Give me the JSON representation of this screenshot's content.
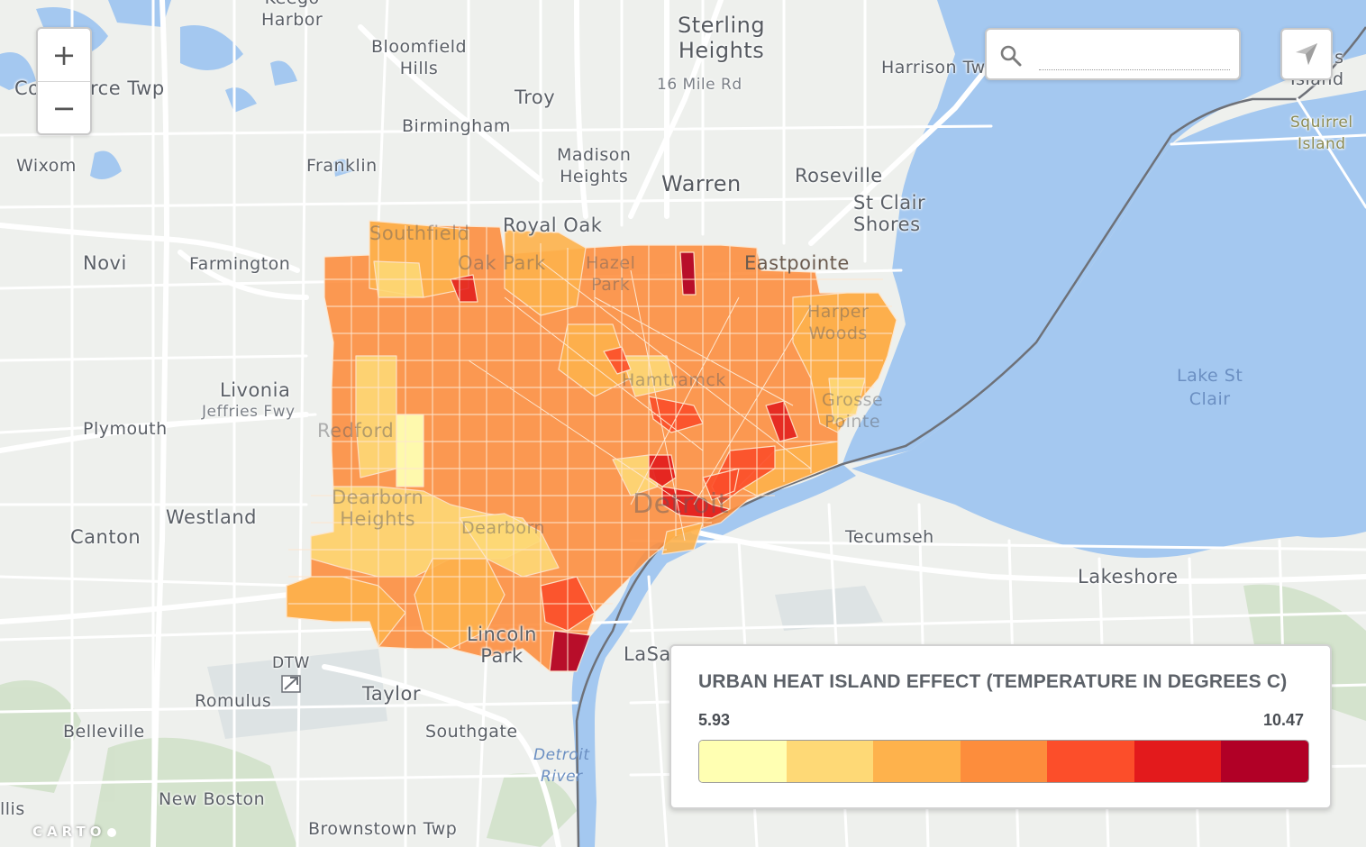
{
  "map": {
    "labels": [
      {
        "id": "keego-harbor",
        "text": "Keego\nHarbor"
      },
      {
        "id": "bloomfield-hills",
        "text": "Bloomfield\nHills"
      },
      {
        "id": "sterling-heights",
        "text": "Sterling\nHeights"
      },
      {
        "id": "harrison-twp",
        "text": "Harrison Tw"
      },
      {
        "id": "commerce-twp-a",
        "text": "Co"
      },
      {
        "id": "commerce-twp-b",
        "text": "rce Twp"
      },
      {
        "id": "troy",
        "text": "Troy"
      },
      {
        "id": "sixteen-mile-rd",
        "text": "16 Mile Rd"
      },
      {
        "id": "birmingham",
        "text": "Birmingham"
      },
      {
        "id": "madison-heights",
        "text": "Madison\nHeights"
      },
      {
        "id": "wixom",
        "text": "Wixom"
      },
      {
        "id": "franklin",
        "text": "Franklin"
      },
      {
        "id": "warren",
        "text": "Warren"
      },
      {
        "id": "roseville",
        "text": "Roseville"
      },
      {
        "id": "st-clair-shores",
        "text": "St Clair\nShores"
      },
      {
        "id": "squirrel-island",
        "text": "Squirrel\nIsland"
      },
      {
        "id": "ns-island",
        "text": "ns\nIsland"
      },
      {
        "id": "southfield",
        "text": "Southfield"
      },
      {
        "id": "royal-oak",
        "text": "Royal Oak"
      },
      {
        "id": "novi",
        "text": "Novi"
      },
      {
        "id": "farmington",
        "text": "Farmington"
      },
      {
        "id": "oak-park",
        "text": "Oak Park"
      },
      {
        "id": "hazel-park",
        "text": "Hazel\nPark"
      },
      {
        "id": "eastpointe",
        "text": "Eastpointe"
      },
      {
        "id": "harper-woods",
        "text": "Harper\nWoods"
      },
      {
        "id": "lake-st-clair",
        "text": "Lake St\nClair"
      },
      {
        "id": "livonia",
        "text": "Livonia"
      },
      {
        "id": "jeffries-fwy",
        "text": "Jeffries Fwy"
      },
      {
        "id": "hamtramck",
        "text": "Hamtramck"
      },
      {
        "id": "plymouth",
        "text": "Plymouth"
      },
      {
        "id": "redford",
        "text": "Redford"
      },
      {
        "id": "grosse-pointe",
        "text": "Grosse\nPointe"
      },
      {
        "id": "dearborn-heights",
        "text": "Dearborn\nHeights"
      },
      {
        "id": "westland",
        "text": "Westland"
      },
      {
        "id": "detroit",
        "text": "Detroit"
      },
      {
        "id": "canton",
        "text": "Canton"
      },
      {
        "id": "dearborn",
        "text": "Dearborn"
      },
      {
        "id": "tecumseh",
        "text": "Tecumseh"
      },
      {
        "id": "lakeshore",
        "text": "Lakeshore"
      },
      {
        "id": "lincoln-park",
        "text": "Lincoln\nPark"
      },
      {
        "id": "lasalle",
        "text": "LaSa"
      },
      {
        "id": "dtw",
        "text": "DTW"
      },
      {
        "id": "romulus",
        "text": "Romulus"
      },
      {
        "id": "taylor",
        "text": "Taylor"
      },
      {
        "id": "belleville",
        "text": "Belleville"
      },
      {
        "id": "southgate",
        "text": "Southgate"
      },
      {
        "id": "detroit-river",
        "text": "Detroit\nRiver"
      },
      {
        "id": "new-boston",
        "text": "New Boston"
      },
      {
        "id": "brownstown-twp",
        "text": "Brownstown Twp"
      },
      {
        "id": "ellis",
        "text": "llis"
      }
    ]
  },
  "controls": {
    "zoom_in": "+",
    "zoom_out": "−",
    "search_placeholder": ""
  },
  "legend": {
    "title": "URBAN HEAT ISLAND EFFECT (TEMPERATURE IN DEGREES C)",
    "min": "5.93",
    "max": "10.47",
    "colors": [
      "#ffffb2",
      "#fed976",
      "#feb24c",
      "#fd8d3c",
      "#fc4e2a",
      "#e31a1c",
      "#b10026"
    ]
  },
  "attribution": "CARTO"
}
